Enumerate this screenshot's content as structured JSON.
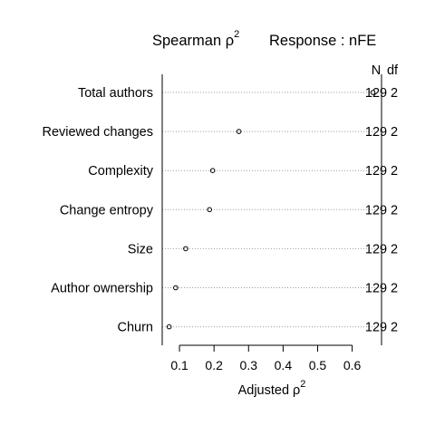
{
  "chart_data": {
    "type": "scatter",
    "title": {
      "left": "Spearman ρ",
      "left_sup": "2",
      "right": "Response : nFE"
    },
    "xlabel": "Adjusted ρ",
    "xlabel_sup": "2",
    "xlim": [
      0.05,
      0.685
    ],
    "xticks": [
      0.1,
      0.2,
      0.3,
      0.4,
      0.5,
      0.6
    ],
    "xtick_labels": [
      "0.1",
      "0.2",
      "0.3",
      "0.4",
      "0.5",
      "0.6"
    ],
    "column_headers": {
      "n": "N",
      "df": "df"
    },
    "categories": [
      "Total authors",
      "Reviewed changes",
      "Complexity",
      "Change entropy",
      "Size",
      "Author ownership",
      "Churn"
    ],
    "values": [
      0.66,
      0.272,
      0.196,
      0.187,
      0.118,
      0.089,
      0.07
    ],
    "n": [
      "129",
      "129",
      "129",
      "129",
      "129",
      "129",
      "129"
    ],
    "df": [
      "2",
      "2",
      "2",
      "2",
      "2",
      "2",
      "2"
    ],
    "grid": "dotted horizontal"
  }
}
